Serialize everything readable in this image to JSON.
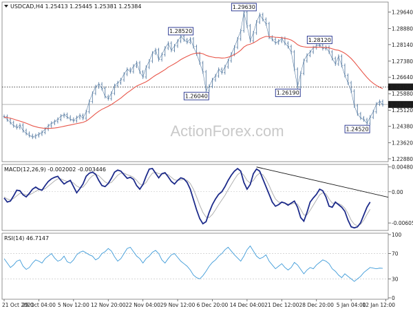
{
  "chart_data": [
    {
      "type": "line",
      "panel": "price",
      "title": "USDCAD,H4  1.25413 1.25445 1.25381 1.25384",
      "symbol_icon": "triangle-down-icon",
      "watermark": "ActionForex.com",
      "ylim": [
        1.2275,
        1.301
      ],
      "yticks": [
        "1.29640",
        "1.28880",
        "1.28140",
        "1.27380",
        "1.26640",
        "1.25880",
        "1.25120",
        "1.24380",
        "1.23620",
        "1.22880"
      ],
      "ytick_values": [
        1.2964,
        1.2888,
        1.2814,
        1.2738,
        1.2664,
        1.2588,
        1.2512,
        1.2438,
        1.2362,
        1.2288
      ],
      "level_line": {
        "value": 1.2619,
        "label": "1.26190",
        "style": "dotted"
      },
      "current_price": {
        "value": 1.25384,
        "label": "1.25384"
      },
      "annotations": [
        {
          "text": "1.28520",
          "i": 56,
          "v": 1.2852
        },
        {
          "text": "1.29630",
          "i": 76,
          "v": 1.2963
        },
        {
          "text": "1.26040",
          "i": 64,
          "v": 1.2604
        },
        {
          "text": "1.28120",
          "i": 100,
          "v": 1.2812
        },
        {
          "text": "1.26190",
          "i": 93,
          "v": 1.2619
        },
        {
          "text": "1.24520",
          "i": 115,
          "v": 1.2452
        }
      ],
      "series": [
        {
          "name": "",
          "color": "#5a7ea4",
          "values": [
            1.2483,
            1.2468,
            1.2455,
            1.244,
            1.2432,
            1.2443,
            1.2418,
            1.2405,
            1.2395,
            1.2388,
            1.2395,
            1.2402,
            1.241,
            1.2425,
            1.244,
            1.2452,
            1.246,
            1.247,
            1.2485,
            1.2492,
            1.248,
            1.247,
            1.2463,
            1.2478,
            1.2488,
            1.2475,
            1.2505,
            1.2552,
            1.259,
            1.262,
            1.2632,
            1.2612,
            1.2575,
            1.2565,
            1.259,
            1.2625,
            1.2638,
            1.2652,
            1.2678,
            1.27,
            1.269,
            1.2715,
            1.273,
            1.2688,
            1.2665,
            1.271,
            1.2738,
            1.2775,
            1.279,
            1.2745,
            1.2768,
            1.2798,
            1.282,
            1.2788,
            1.2808,
            1.283,
            1.2852,
            1.2836,
            1.2825,
            1.284,
            1.2805,
            1.2772,
            1.273,
            1.2688,
            1.2604,
            1.2622,
            1.2652,
            1.267,
            1.27,
            1.2685,
            1.2712,
            1.274,
            1.277,
            1.2802,
            1.284,
            1.2878,
            1.2963,
            1.29,
            1.2832,
            1.2868,
            1.2918,
            1.2952,
            1.293,
            1.291,
            1.2848,
            1.2838,
            1.2822,
            1.283,
            1.2842,
            1.282,
            1.2805,
            1.278,
            1.27,
            1.2619,
            1.2682,
            1.274,
            1.2765,
            1.278,
            1.28,
            1.281,
            1.2812,
            1.2796,
            1.2802,
            1.278,
            1.275,
            1.2725,
            1.276,
            1.2718,
            1.2672,
            1.2638,
            1.26,
            1.2532,
            1.2495,
            1.2476,
            1.2468,
            1.2452,
            1.248,
            1.2505,
            1.254,
            1.2552,
            1.2538
          ]
        },
        {
          "name": "",
          "color": "#e8564a",
          "values": [
            1.248,
            1.2478,
            1.2475,
            1.2471,
            1.2466,
            1.2462,
            1.2457,
            1.2452,
            1.2446,
            1.244,
            1.2436,
            1.2432,
            1.243,
            1.2428,
            1.2428,
            1.2429,
            1.243,
            1.2432,
            1.2435,
            1.2438,
            1.2441,
            1.2444,
            1.2447,
            1.245,
            1.2453,
            1.2456,
            1.2462,
            1.2472,
            1.2484,
            1.2496,
            1.2507,
            1.2516,
            1.2523,
            1.253,
            1.2538,
            1.2548,
            1.2558,
            1.2568,
            1.258,
            1.2592,
            1.2602,
            1.2613,
            1.2623,
            1.263,
            1.2636,
            1.2643,
            1.2652,
            1.2663,
            1.2673,
            1.2681,
            1.269,
            1.2699,
            1.271,
            1.2718,
            1.2726,
            1.2735,
            1.2745,
            1.2753,
            1.276,
            1.2767,
            1.2772,
            1.2775,
            1.2775,
            1.2772,
            1.2765,
            1.276,
            1.2757,
            1.2754,
            1.2754,
            1.2752,
            1.2753,
            1.2756,
            1.2761,
            1.2768,
            1.2777,
            1.2788,
            1.2803,
            1.2812,
            1.2816,
            1.2822,
            1.283,
            1.284,
            1.2847,
            1.2852,
            1.2851,
            1.285,
            1.2848,
            1.2847,
            1.2846,
            1.2843,
            1.284,
            1.2835,
            1.2826,
            1.2814,
            1.2807,
            1.2804,
            1.2802,
            1.2802,
            1.2802,
            1.2802,
            1.2802,
            1.2801,
            1.2801,
            1.2799,
            1.2795,
            1.279,
            1.2788,
            1.2782,
            1.2774,
            1.2763,
            1.275,
            1.2734,
            1.2716,
            1.2698,
            1.268,
            1.2663,
            1.2648,
            1.2636,
            1.2626,
            1.2618,
            1.2611
          ]
        }
      ]
    },
    {
      "type": "line",
      "panel": "macd",
      "title": "MACD(12,26,9) -0.002002 -0.003446",
      "ylim": [
        -0.0075,
        0.0053
      ],
      "yticks": [
        "0.004809",
        "0.00",
        "-0.00605"
      ],
      "ytick_values": [
        0.004809,
        0.0,
        -0.00605
      ],
      "trendline": {
        "from": {
          "i": 80,
          "v": 0.0048
        },
        "to": {
          "i": 121,
          "v": -0.0012
        }
      },
      "series": [
        {
          "name": "",
          "color": "#1c2a8a",
          "values": [
            -0.0012,
            -0.002,
            -0.0018,
            -0.0008,
            0.0003,
            0.0002,
            -0.0006,
            -0.001,
            -0.0003,
            0.0005,
            0.0009,
            0.0005,
            0.0003,
            0.0012,
            0.002,
            0.0025,
            0.0028,
            0.003,
            0.0022,
            0.0015,
            0.0019,
            0.0022,
            0.001,
            -0.0002,
            0.0006,
            0.0015,
            0.003,
            0.0036,
            0.0038,
            0.0034,
            0.0022,
            0.0012,
            0.001,
            0.0016,
            0.0026,
            0.0038,
            0.0042,
            0.004,
            0.0033,
            0.0026,
            0.0028,
            0.0024,
            0.0012,
            0.0005,
            0.0014,
            0.003,
            0.0044,
            0.0045,
            0.0036,
            0.0027,
            0.0035,
            0.0037,
            0.0029,
            0.002,
            0.0015,
            0.0022,
            0.0027,
            0.0025,
            0.0018,
            0.0005,
            -0.0015,
            -0.0035,
            -0.0052,
            -0.0062,
            -0.0058,
            -0.004,
            -0.0025,
            -0.0014,
            -0.0005,
            0.0,
            0.001,
            0.0022,
            0.0032,
            0.004,
            0.0045,
            0.004,
            0.0018,
            0.0005,
            0.0014,
            0.0035,
            0.0044,
            0.004,
            0.0025,
            0.001,
            -0.0005,
            -0.002,
            -0.0028,
            -0.0025,
            -0.002,
            -0.0022,
            -0.0026,
            -0.0022,
            -0.0018,
            -0.003,
            -0.005,
            -0.0057,
            -0.004,
            -0.002,
            -0.0012,
            -0.0005,
            0.0005,
            0.0002,
            -0.001,
            -0.0028,
            -0.003,
            -0.002,
            -0.0025,
            -0.003,
            -0.0038,
            -0.0055,
            -0.0068,
            -0.007,
            -0.0068,
            -0.006,
            -0.0045,
            -0.003,
            -0.002
          ]
        },
        {
          "name": "",
          "color": "#b0b0b0",
          "values": [
            -0.001,
            -0.0014,
            -0.0016,
            -0.0013,
            -0.0008,
            -0.0003,
            -0.0004,
            -0.0006,
            -0.0006,
            -0.0003,
            0.0001,
            0.0004,
            0.0004,
            0.0006,
            0.0011,
            0.0016,
            0.0021,
            0.0025,
            0.0025,
            0.0022,
            0.002,
            0.002,
            0.0017,
            0.0011,
            0.0008,
            0.0009,
            0.0016,
            0.0025,
            0.0031,
            0.0034,
            0.0031,
            0.0025,
            0.0019,
            0.0016,
            0.0018,
            0.0025,
            0.0032,
            0.0036,
            0.0036,
            0.0033,
            0.0031,
            0.0028,
            0.0022,
            0.0015,
            0.0013,
            0.0018,
            0.0028,
            0.0036,
            0.0038,
            0.0035,
            0.0034,
            0.0035,
            0.0033,
            0.0028,
            0.0023,
            0.0022,
            0.0023,
            0.0024,
            0.0022,
            0.0016,
            0.0005,
            -0.001,
            -0.0026,
            -0.004,
            -0.0049,
            -0.005,
            -0.0044,
            -0.0035,
            -0.0025,
            -0.0016,
            -0.0007,
            0.0004,
            0.0014,
            0.0024,
            0.0033,
            0.0038,
            0.0032,
            0.0022,
            0.0017,
            0.0022,
            0.0031,
            0.0036,
            0.0033,
            0.0024,
            0.0012,
            -0.0002,
            -0.0014,
            -0.002,
            -0.0021,
            -0.0022,
            -0.0024,
            -0.0024,
            -0.0022,
            -0.0024,
            -0.0034,
            -0.0045,
            -0.0045,
            -0.0036,
            -0.0026,
            -0.0016,
            -0.0006,
            -0.0002,
            -0.0004,
            -0.0014,
            -0.0022,
            -0.0022,
            -0.0023,
            -0.0026,
            -0.0032,
            -0.0042,
            -0.0055,
            -0.0063,
            -0.0066,
            -0.0063,
            -0.0055,
            -0.0044,
            -0.0034
          ]
        }
      ]
    },
    {
      "type": "line",
      "panel": "rsi",
      "title": "RSI(14) 46.7147",
      "ylim": [
        0,
        100
      ],
      "yticks": [
        "100",
        "70",
        "30",
        "0"
      ],
      "ytick_values": [
        100,
        70,
        30,
        0
      ],
      "levels": [
        70,
        30
      ],
      "series": [
        {
          "name": "",
          "color": "#3d9ad8",
          "values": [
            62,
            55,
            48,
            52,
            58,
            60,
            50,
            45,
            48,
            55,
            60,
            58,
            55,
            62,
            66,
            70,
            63,
            58,
            60,
            66,
            57,
            55,
            60,
            68,
            72,
            74,
            71,
            68,
            66,
            60,
            63,
            70,
            73,
            78,
            74,
            65,
            58,
            62,
            70,
            78,
            80,
            73,
            66,
            62,
            55,
            62,
            66,
            72,
            75,
            70,
            60,
            55,
            62,
            68,
            70,
            64,
            58,
            54,
            50,
            44,
            36,
            32,
            30,
            35,
            42,
            50,
            56,
            60,
            66,
            70,
            76,
            80,
            74,
            68,
            63,
            58,
            66,
            76,
            82,
            74,
            66,
            62,
            64,
            68,
            58,
            52,
            46,
            50,
            54,
            48,
            44,
            48,
            56,
            52,
            45,
            38,
            44,
            48,
            46,
            52,
            56,
            60,
            58,
            54,
            46,
            42,
            36,
            32,
            38,
            34,
            30,
            26,
            30,
            34,
            40,
            44,
            48,
            47,
            46,
            47,
            46.7
          ]
        }
      ]
    }
  ],
  "x_axis": {
    "labels": [
      "21 Oct 2021",
      "29 Oct 04:00",
      "5 Nov 12:00",
      "12 Nov 20:00",
      "22 Nov 04:00",
      "29 Nov 12:00",
      "6 Dec 20:00",
      "14 Dec 04:00",
      "21 Dec 12:00",
      "28 Dec 20:00",
      "5 Jan 04:00",
      "12 Jan 12:00"
    ],
    "label_index": [
      0,
      11,
      22,
      33,
      44,
      55,
      66,
      77,
      88,
      99,
      110,
      121
    ]
  },
  "colors": {
    "price": "#5a7ea4",
    "ma": "#e8564a",
    "macd": "#1c2a8a",
    "signal": "#b0b0b0",
    "rsi": "#3d9ad8",
    "label_border": "#1c2a8a",
    "level_box": "#1a1a1a"
  }
}
